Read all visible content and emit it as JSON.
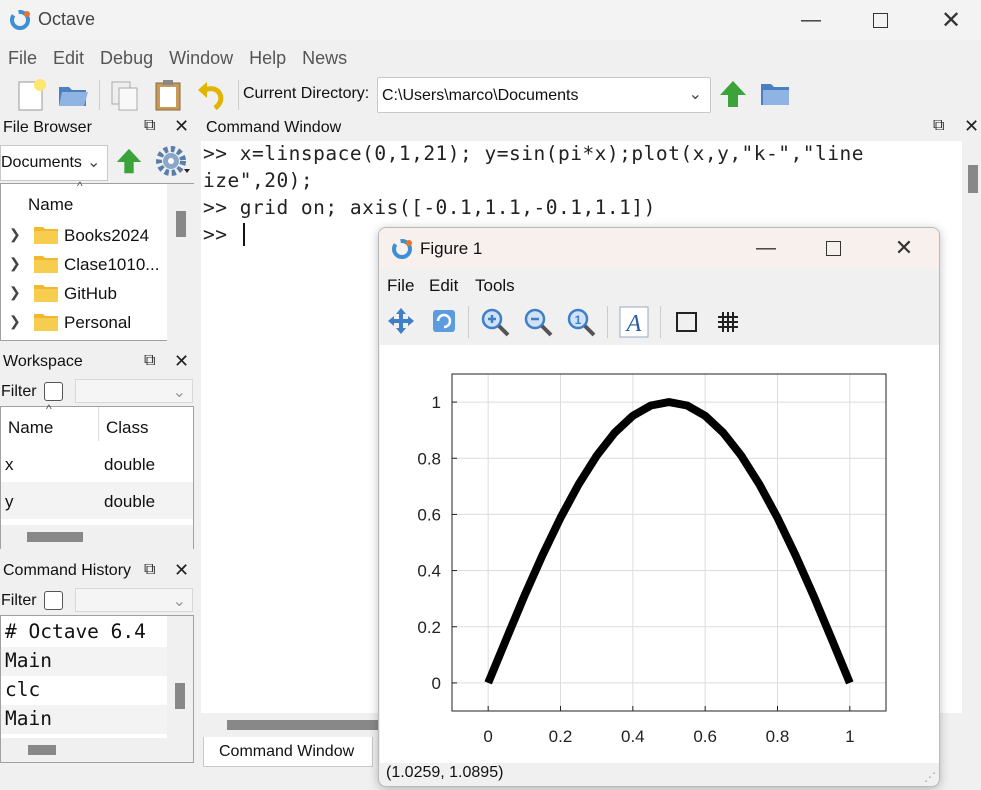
{
  "app": {
    "title": "Octave"
  },
  "menu": [
    "File",
    "Edit",
    "Debug",
    "Window",
    "Help",
    "News"
  ],
  "toolbar": {
    "cwd_label": "Current Directory:",
    "cwd_value": "C:\\Users\\marco\\Documents"
  },
  "file_browser": {
    "title": "File Browser",
    "location": "Documents",
    "column": "Name",
    "items": [
      "Books2024",
      "Clase1010...",
      "GitHub",
      "Personal"
    ]
  },
  "workspace": {
    "title": "Workspace",
    "filter_label": "Filter",
    "columns": [
      "Name",
      "Class"
    ],
    "rows": [
      {
        "name": "x",
        "class": "double"
      },
      {
        "name": "y",
        "class": "double"
      }
    ]
  },
  "history": {
    "title": "Command History",
    "filter_label": "Filter",
    "lines": [
      "# Octave 6.4",
      "Main",
      "clc",
      "Main"
    ]
  },
  "command_window": {
    "title": "Command Window",
    "lines": [
      ">> x=linspace(0,1,21); y=sin(pi*x);plot(x,y,\"k-\",\"line",
      "ize\",20);",
      ">> grid on; axis([-0.1,1.1,-0.1,1.1])",
      ">> "
    ],
    "tab_label": "Command Window"
  },
  "figure": {
    "title": "Figure 1",
    "menu": [
      "File",
      "Edit",
      "Tools"
    ],
    "status": "(1.0259, 1.0895)"
  },
  "chart_data": {
    "type": "line",
    "title": "",
    "xlabel": "",
    "ylabel": "",
    "xlim": [
      -0.1,
      1.1
    ],
    "ylim": [
      -0.1,
      1.1
    ],
    "grid": true,
    "xticks": [
      "0",
      "0.2",
      "0.4",
      "0.6",
      "0.8",
      "1"
    ],
    "yticks": [
      "0",
      "0.2",
      "0.4",
      "0.6",
      "0.8",
      "1"
    ],
    "series": [
      {
        "color": "#000000",
        "x": [
          0,
          0.05,
          0.1,
          0.15,
          0.2,
          0.25,
          0.3,
          0.35,
          0.4,
          0.45,
          0.5,
          0.55,
          0.6,
          0.65,
          0.7,
          0.75,
          0.8,
          0.85,
          0.9,
          0.95,
          1
        ],
        "y": [
          0,
          0.156,
          0.309,
          0.454,
          0.588,
          0.707,
          0.809,
          0.891,
          0.951,
          0.988,
          1,
          0.988,
          0.951,
          0.891,
          0.809,
          0.707,
          0.588,
          0.454,
          0.309,
          0.156,
          0
        ]
      }
    ]
  }
}
